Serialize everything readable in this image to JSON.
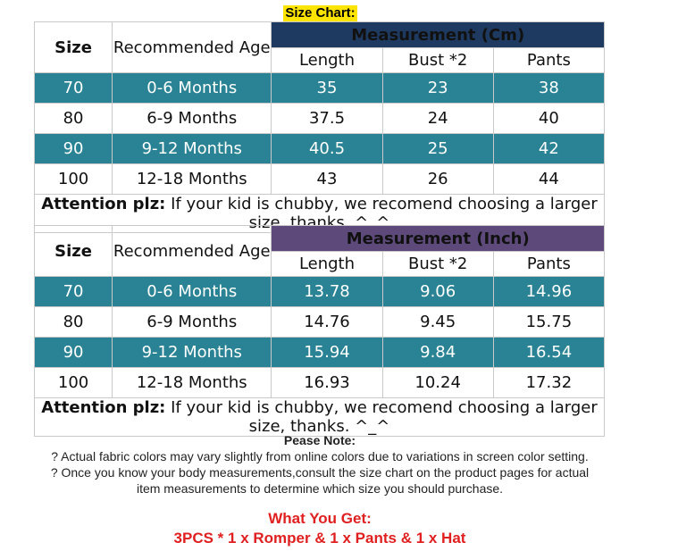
{
  "title": "Size Chart:",
  "tables": [
    {
      "header": {
        "size": "Size",
        "age": "Recommended Age",
        "measurement": "Measurement (Cm)",
        "length": "Length",
        "bust": "Bust *2",
        "pants": "Pants"
      },
      "rows": [
        {
          "size": "70",
          "age": "0-6 Months",
          "length": "35",
          "bust": "23",
          "pants": "38"
        },
        {
          "size": "80",
          "age": "6-9 Months",
          "length": "37.5",
          "bust": "24",
          "pants": "40"
        },
        {
          "size": "90",
          "age": "9-12 Months",
          "length": "40.5",
          "bust": "25",
          "pants": "42"
        },
        {
          "size": "100",
          "age": "12-18 Months",
          "length": "43",
          "bust": "26",
          "pants": "44"
        }
      ],
      "attention_label": "Attention plz:",
      "attention_text": "If your kid is chubby, we recomend choosing a larger size, thanks. ^_^"
    },
    {
      "header": {
        "size": "Size",
        "age": "Recommended Age",
        "measurement": "Measurement (Inch)",
        "length": "Length",
        "bust": "Bust *2",
        "pants": "Pants"
      },
      "rows": [
        {
          "size": "70",
          "age": "0-6 Months",
          "length": "13.78",
          "bust": "9.06",
          "pants": "14.96"
        },
        {
          "size": "80",
          "age": "6-9 Months",
          "length": "14.76",
          "bust": "9.45",
          "pants": "15.75"
        },
        {
          "size": "90",
          "age": "9-12 Months",
          "length": "15.94",
          "bust": "9.84",
          "pants": "16.54"
        },
        {
          "size": "100",
          "age": "12-18 Months",
          "length": "16.93",
          "bust": "10.24",
          "pants": "17.32"
        }
      ],
      "attention_label": "Attention plz:",
      "attention_text": "If your kid is chubby, we recomend choosing a larger size, thanks. ^_^"
    }
  ],
  "notes": {
    "title": "Pease Note:",
    "line1": "? Actual fabric colors may vary slightly from online colors due to variations in screen color setting.",
    "line2": "? Once you know your body measurements,consult the size chart on the product pages for actual",
    "line3": "item measurements to determine which size you should purchase."
  },
  "what_you_get": {
    "title": "What You Get:",
    "items": "3PCS * 1 x Romper & 1 x Pants & 1 x Hat"
  },
  "colors": {
    "title_highlight": "#ffe400",
    "cm_header": "#1f3a60",
    "inch_header": "#5d4a7a",
    "teal_row": "#2a8395",
    "get_text": "#e02020"
  }
}
